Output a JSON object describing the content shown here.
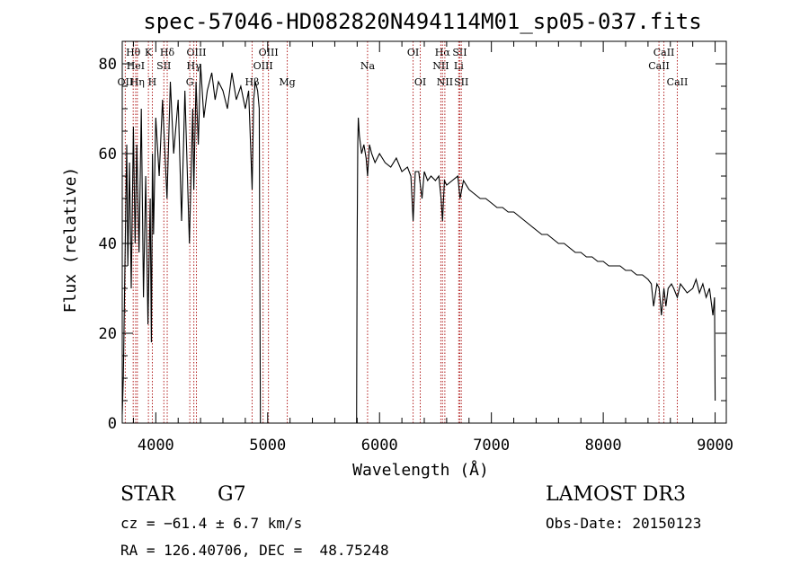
{
  "chart_data": {
    "type": "line",
    "title": "spec-57046-HD082820N494114M01_sp05-037.fits",
    "xlabel": "Wavelength (Å)",
    "ylabel": "Flux (relative)",
    "xlim": [
      3700,
      9100
    ],
    "ylim": [
      0,
      85
    ],
    "xticks": [
      4000,
      5000,
      6000,
      7000,
      8000,
      9000
    ],
    "xtick_labels": [
      "4000",
      "5000",
      "6000",
      "7000",
      "8000",
      "9000"
    ],
    "yticks": [
      0,
      20,
      40,
      60,
      80
    ],
    "ytick_labels": [
      "0",
      "20",
      "40",
      "60",
      "80"
    ],
    "grid": false,
    "series": [
      {
        "name": "spectrum",
        "color": "#000000",
        "x": [
          3700,
          3710,
          3730,
          3740,
          3750,
          3765,
          3780,
          3800,
          3815,
          3830,
          3850,
          3870,
          3890,
          3910,
          3930,
          3950,
          3960,
          3970,
          3980,
          4000,
          4030,
          4060,
          4100,
          4130,
          4160,
          4200,
          4230,
          4260,
          4300,
          4330,
          4340,
          4360,
          4380,
          4400,
          4430,
          4460,
          4500,
          4530,
          4560,
          4600,
          4640,
          4680,
          4720,
          4760,
          4800,
          4830,
          4850,
          4861,
          4875,
          4890,
          4910,
          4925,
          4935,
          5000,
          5500,
          5795,
          5800,
          5805,
          5810,
          5820,
          5840,
          5860,
          5880,
          5893,
          5910,
          5930,
          5960,
          6000,
          6050,
          6100,
          6150,
          6200,
          6250,
          6280,
          6300,
          6320,
          6350,
          6380,
          6400,
          6430,
          6460,
          6500,
          6530,
          6550,
          6563,
          6580,
          6600,
          6650,
          6700,
          6720,
          6750,
          6800,
          6850,
          6900,
          6950,
          7000,
          7050,
          7100,
          7150,
          7200,
          7250,
          7300,
          7350,
          7400,
          7450,
          7500,
          7550,
          7600,
          7650,
          7700,
          7750,
          7800,
          7850,
          7900,
          7950,
          8000,
          8050,
          8100,
          8150,
          8200,
          8250,
          8300,
          8350,
          8400,
          8430,
          8450,
          8480,
          8500,
          8520,
          8542,
          8560,
          8580,
          8610,
          8630,
          8662,
          8690,
          8720,
          8750,
          8800,
          8830,
          8860,
          8890,
          8920,
          8950,
          8980,
          8995,
          9000
        ],
        "y": [
          2,
          10,
          45,
          62,
          35,
          58,
          30,
          66,
          40,
          62,
          38,
          70,
          28,
          55,
          22,
          50,
          18,
          60,
          42,
          68,
          55,
          72,
          50,
          76,
          60,
          72,
          45,
          74,
          40,
          70,
          52,
          76,
          62,
          80,
          68,
          74,
          78,
          72,
          76,
          74,
          70,
          78,
          72,
          75,
          70,
          74,
          60,
          52,
          72,
          76,
          74,
          70,
          0,
          0,
          0,
          0,
          40,
          62,
          68,
          64,
          60,
          62,
          59,
          55,
          62,
          60,
          58,
          60,
          58,
          57,
          59,
          56,
          57,
          55,
          45,
          56,
          56,
          50,
          56,
          54,
          55,
          54,
          55,
          50,
          45,
          54,
          53,
          54,
          55,
          50,
          54,
          52,
          51,
          50,
          50,
          49,
          48,
          48,
          47,
          47,
          46,
          45,
          44,
          43,
          42,
          42,
          41,
          40,
          40,
          39,
          38,
          38,
          37,
          37,
          36,
          36,
          35,
          35,
          35,
          34,
          34,
          33,
          33,
          32,
          31,
          26,
          31,
          30,
          24,
          30,
          26,
          30,
          31,
          30,
          28,
          31,
          30,
          29,
          30,
          32,
          29,
          31,
          28,
          30,
          24,
          28,
          5
        ]
      }
    ],
    "line_markers": [
      {
        "label": "Hθ",
        "x": 3798,
        "row": 1
      },
      {
        "label": "HeI",
        "x": 3820,
        "row": 2
      },
      {
        "label": "OII",
        "x": 3727,
        "row": 3
      },
      {
        "label": "Hη",
        "x": 3835,
        "row": 3
      },
      {
        "label": "K",
        "x": 3934,
        "row": 1
      },
      {
        "label": "SII",
        "x": 4072,
        "row": 2
      },
      {
        "label": "H",
        "x": 3969,
        "row": 3
      },
      {
        "label": "Hδ",
        "x": 4102,
        "row": 1
      },
      {
        "label": "OIII",
        "x": 4363,
        "row": 1
      },
      {
        "label": "Hγ",
        "x": 4340,
        "row": 2
      },
      {
        "label": "G",
        "x": 4304,
        "row": 3
      },
      {
        "label": "OIII",
        "x": 5007,
        "row": 1
      },
      {
        "label": "OIII",
        "x": 4959,
        "row": 2
      },
      {
        "label": "Hβ",
        "x": 4861,
        "row": 3
      },
      {
        "label": "Mg",
        "x": 5175,
        "row": 3
      },
      {
        "label": "Na",
        "x": 5893,
        "row": 2
      },
      {
        "label": "OI",
        "x": 6300,
        "row": 1
      },
      {
        "label": "OI",
        "x": 6364,
        "row": 3
      },
      {
        "label": "Hα",
        "x": 6563,
        "row": 1
      },
      {
        "label": "NII",
        "x": 6548,
        "row": 2
      },
      {
        "label": "NII",
        "x": 6584,
        "row": 3
      },
      {
        "label": "SII",
        "x": 6717,
        "row": 1
      },
      {
        "label": "Li",
        "x": 6708,
        "row": 2
      },
      {
        "label": "SII",
        "x": 6731,
        "row": 3
      },
      {
        "label": "CaII",
        "x": 8542,
        "row": 1
      },
      {
        "label": "CaII",
        "x": 8498,
        "row": 2
      },
      {
        "label": "CaII",
        "x": 8662,
        "row": 3
      }
    ],
    "marker_color": "#b22222"
  },
  "info": {
    "class_label": "STAR",
    "subclass": "G7",
    "survey": "LAMOST DR3",
    "redshift_line": "cz = −61.4 ± 6.7 km/s",
    "obs_date_line": "Obs-Date: 20150123",
    "coords_line": "RA = 126.40706, DEC =  48.75248"
  }
}
